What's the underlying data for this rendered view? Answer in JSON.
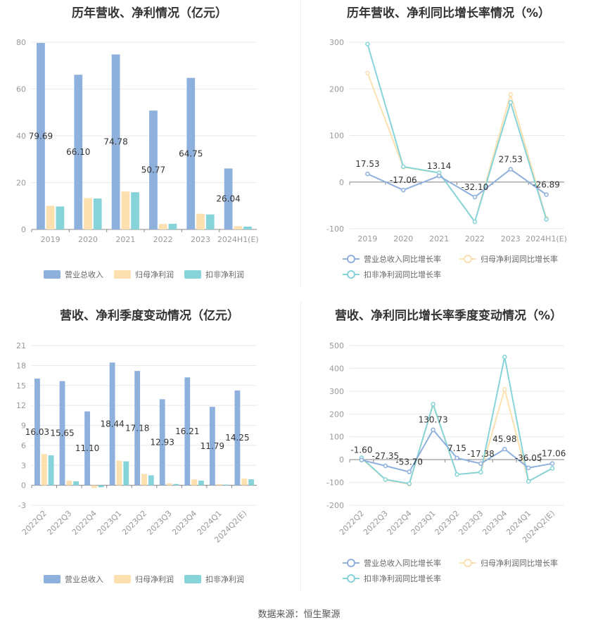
{
  "colors": {
    "revenue": "#8eb0dd",
    "net_profit": "#fde0b0",
    "deducted_profit": "#86d4d9",
    "grid": "#e8e8e8",
    "axis_text": "#999999",
    "label_text": "#333333"
  },
  "source": "数据来源：恒生聚源",
  "chart_data": [
    {
      "id": "annual_bars",
      "type": "bar",
      "title": "历年营收、净利情况（亿元）",
      "categories": [
        "2019",
        "2020",
        "2021",
        "2022",
        "2023",
        "2024H1(E)"
      ],
      "series": [
        {
          "name": "营业总收入",
          "values": [
            79.69,
            66.1,
            74.78,
            50.77,
            64.75,
            26.04
          ]
        },
        {
          "name": "归母净利润",
          "values": [
            10.1,
            13.4,
            16.2,
            2.3,
            6.7,
            1.4
          ]
        },
        {
          "name": "扣非净利润",
          "values": [
            9.8,
            13.2,
            15.9,
            2.4,
            6.4,
            1.2
          ]
        }
      ],
      "labels": [
        "79.69",
        "66.10",
        "74.78",
        "50.77",
        "64.75",
        "26.04"
      ],
      "ylim": [
        0,
        80
      ],
      "yticks": [
        "0",
        "20",
        "40",
        "60",
        "80"
      ],
      "grid": true,
      "legend": "bottom"
    },
    {
      "id": "annual_growth",
      "type": "line",
      "title": "历年营收、净利同比增长率情况（%）",
      "categories": [
        "2019",
        "2020",
        "2021",
        "2022",
        "2023",
        "2024H1(E)"
      ],
      "series": [
        {
          "name": "营业总收入同比增长率",
          "values": [
            17.53,
            -17.06,
            13.14,
            -32.1,
            27.53,
            -26.89
          ]
        },
        {
          "name": "归母净利润同比增长率",
          "values": [
            234,
            32,
            20,
            -85,
            188,
            -78
          ]
        },
        {
          "name": "扣非净利润同比增长率",
          "values": [
            296,
            33,
            20,
            -85,
            171,
            -80
          ]
        }
      ],
      "labels": [
        "17.53",
        "-17.06",
        "13.14",
        "-32.10",
        "27.53",
        "-26.89"
      ],
      "ylim": [
        -100,
        300
      ],
      "yticks": [
        "-100",
        "0",
        "100",
        "200",
        "300"
      ],
      "grid": true,
      "legend": "bottom"
    },
    {
      "id": "quarterly_bars",
      "type": "bar",
      "title": "营收、净利季度变动情况（亿元）",
      "categories": [
        "2022Q2",
        "2022Q3",
        "2022Q4",
        "2023Q1",
        "2023Q2",
        "2023Q3",
        "2023Q4",
        "2024Q1",
        "2024Q2(E)"
      ],
      "series": [
        {
          "name": "营业总收入",
          "values": [
            16.03,
            15.65,
            11.1,
            18.44,
            17.18,
            12.93,
            16.21,
            11.79,
            14.25
          ]
        },
        {
          "name": "归母净利润",
          "values": [
            4.7,
            0.7,
            -0.4,
            3.7,
            1.7,
            0.3,
            0.9,
            0.2,
            1.0
          ]
        },
        {
          "name": "扣非净利润",
          "values": [
            4.5,
            0.6,
            -0.3,
            3.6,
            1.5,
            0.2,
            0.7,
            0.1,
            0.9
          ]
        }
      ],
      "labels": [
        "16.03",
        "15.65",
        "11.10",
        "18.44",
        "17.18",
        "12.93",
        "16.21",
        "11.79",
        "14.25"
      ],
      "ylim": [
        -3,
        21
      ],
      "yticks": [
        "-3",
        "0",
        "3",
        "6",
        "9",
        "12",
        "15",
        "18",
        "21"
      ],
      "grid": true,
      "legend": "bottom"
    },
    {
      "id": "quarterly_growth",
      "type": "line",
      "title": "营收、净利同比增长率季度变动情况（%）",
      "categories": [
        "2022Q2",
        "2022Q3",
        "2022Q4",
        "2023Q1",
        "2023Q2",
        "2023Q3",
        "2023Q4",
        "2024Q1",
        "2024Q2(E)"
      ],
      "series": [
        {
          "name": "营业总收入同比增长率",
          "values": [
            -1.6,
            -27.35,
            -53.7,
            130.73,
            7.15,
            -17.38,
            45.98,
            -36.05,
            -17.06
          ]
        },
        {
          "name": "归母净利润同比增长率",
          "values": [
            5,
            -88,
            -108,
            240,
            -65,
            -55,
            308,
            -95,
            -38
          ]
        },
        {
          "name": "扣非净利润同比增长率",
          "values": [
            8,
            -87,
            -105,
            243,
            -65,
            -55,
            450,
            -95,
            -38
          ]
        }
      ],
      "labels": [
        "-1.60",
        "-27.35",
        "-53.70",
        "130.73",
        "7.15",
        "-17.38",
        "45.98",
        "-36.05",
        "-17.06"
      ],
      "ylim": [
        -200,
        500
      ],
      "yticks": [
        "-200",
        "-100",
        "0",
        "100",
        "200",
        "300",
        "400",
        "500"
      ],
      "grid": true,
      "legend": "bottom"
    }
  ]
}
